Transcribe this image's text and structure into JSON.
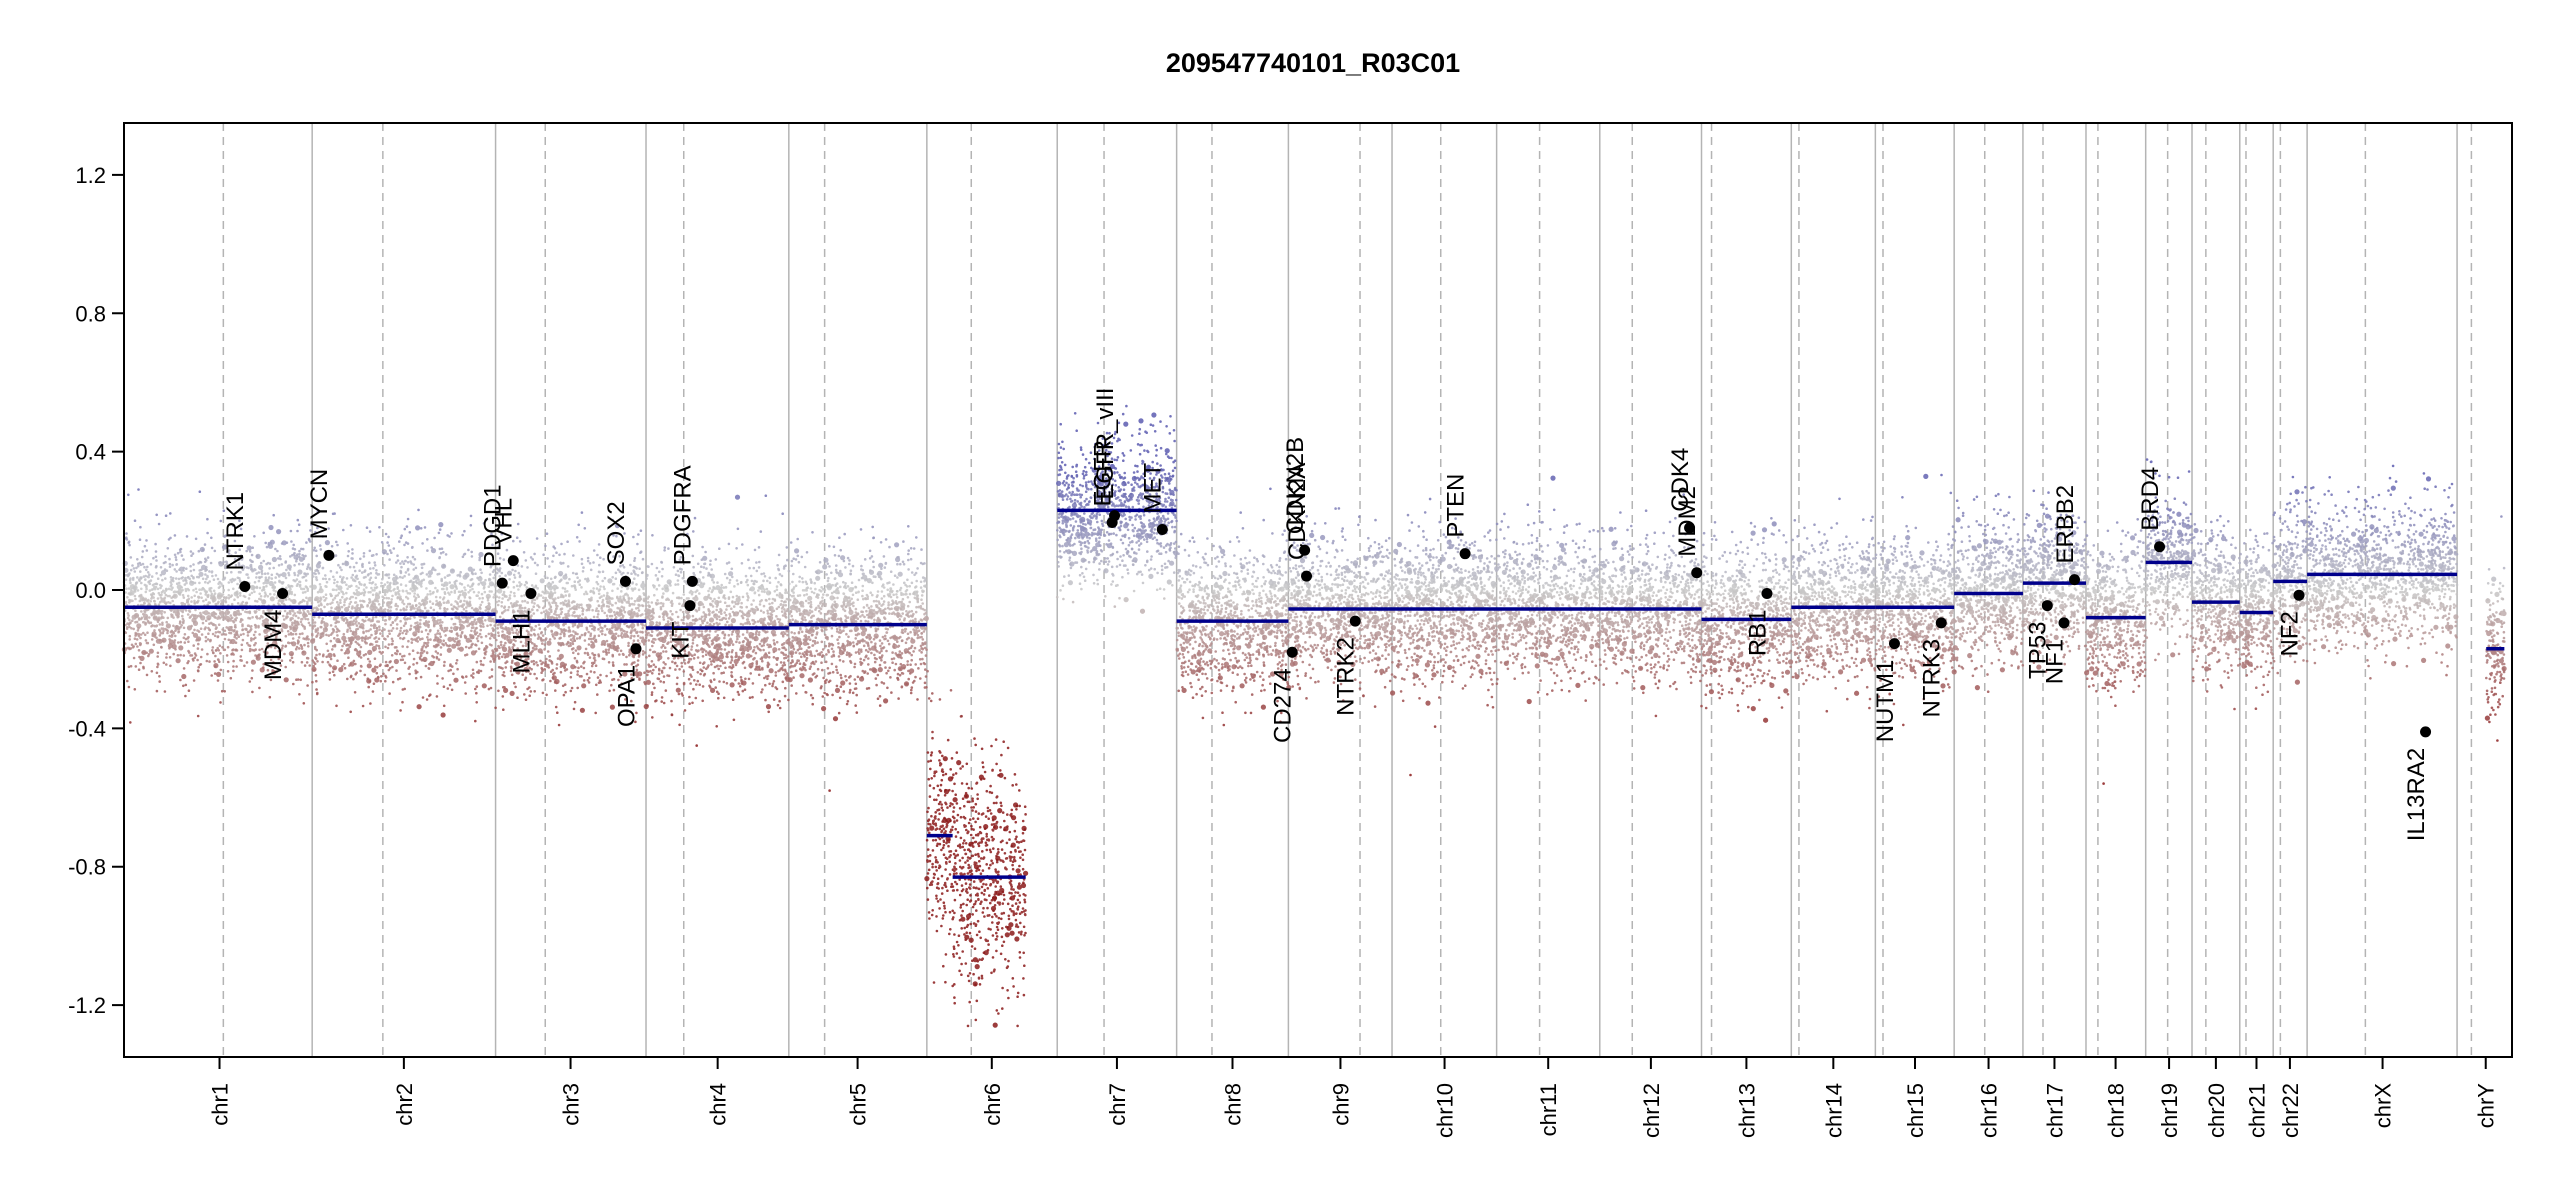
{
  "chart_data": {
    "type": "scatter",
    "title": "209547740101_R03C01",
    "xlabel": "",
    "ylabel": "",
    "ylim": [
      -1.35,
      1.35
    ],
    "y_ticks": [
      -1.2,
      -0.8,
      -0.4,
      0.0,
      0.4,
      0.8,
      1.2
    ],
    "y_tick_labels": [
      "-1.2",
      "-0.8",
      "-0.4",
      "0.0",
      "0.4",
      "0.8",
      "1.2"
    ],
    "x_unit": "relative genome position (chromosome units)",
    "grid": false,
    "colors": {
      "segment": "#00008b",
      "gain": "#5c5cb0",
      "neutral": "#c8c8c8",
      "loss": "#8b1a1a",
      "gene_point": "#000000",
      "chr_boundary": "#b4b4b4",
      "centromere": "#b4b4b4"
    },
    "chromosomes": [
      {
        "name": "chr1",
        "start": 0.0,
        "end": 3.94,
        "centromere": 2.08,
        "label_at": 2.0
      },
      {
        "name": "chr2",
        "start": 3.94,
        "end": 7.78,
        "centromere": 5.42,
        "label_at": 5.86
      },
      {
        "name": "chr3",
        "start": 7.78,
        "end": 10.93,
        "centromere": 8.82,
        "label_at": 9.35
      },
      {
        "name": "chr4",
        "start": 10.93,
        "end": 13.92,
        "centromere": 11.72,
        "label_at": 12.43
      },
      {
        "name": "chr5",
        "start": 13.92,
        "end": 16.81,
        "centromere": 14.67,
        "label_at": 15.36
      },
      {
        "name": "chr6",
        "start": 16.81,
        "end": 19.54,
        "centromere": 17.74,
        "label_at": 18.17
      },
      {
        "name": "chr7",
        "start": 19.54,
        "end": 22.04,
        "centromere": 20.52,
        "label_at": 20.79
      },
      {
        "name": "chr8",
        "start": 22.04,
        "end": 24.38,
        "centromere": 22.78,
        "label_at": 23.21
      },
      {
        "name": "chr9",
        "start": 24.38,
        "end": 26.55,
        "centromere": 25.88,
        "label_at": 25.47
      },
      {
        "name": "chr10",
        "start": 26.55,
        "end": 28.74,
        "centromere": 27.57,
        "label_at": 27.65
      },
      {
        "name": "chr11",
        "start": 28.74,
        "end": 30.9,
        "centromere": 29.64,
        "label_at": 29.82
      },
      {
        "name": "chr12",
        "start": 30.9,
        "end": 33.03,
        "centromere": 31.58,
        "label_at": 31.97
      },
      {
        "name": "chr13",
        "start": 33.03,
        "end": 34.91,
        "centromere": 33.24,
        "label_at": 33.97
      },
      {
        "name": "chr14",
        "start": 34.91,
        "end": 36.67,
        "centromere": 35.07,
        "label_at": 35.79
      },
      {
        "name": "chr15",
        "start": 36.67,
        "end": 38.32,
        "centromere": 36.83,
        "label_at": 37.5
      },
      {
        "name": "chr16",
        "start": 38.32,
        "end": 39.76,
        "centromere": 38.96,
        "label_at": 39.04
      },
      {
        "name": "chr17",
        "start": 39.76,
        "end": 41.08,
        "centromere": 40.18,
        "label_at": 40.42
      },
      {
        "name": "chr18",
        "start": 41.08,
        "end": 42.33,
        "centromere": 41.33,
        "label_at": 41.7
      },
      {
        "name": "chr19",
        "start": 42.33,
        "end": 43.3,
        "centromere": 42.79,
        "label_at": 42.82
      },
      {
        "name": "chr20",
        "start": 43.3,
        "end": 44.3,
        "centromere": 43.59,
        "label_at": 43.8
      },
      {
        "name": "chr21",
        "start": 44.3,
        "end": 45.0,
        "centromere": 44.43,
        "label_at": 44.65
      },
      {
        "name": "chr22",
        "start": 45.0,
        "end": 45.71,
        "centromere": 45.15,
        "label_at": 45.35
      },
      {
        "name": "chrX",
        "start": 45.71,
        "end": 48.85,
        "centromere": 46.93,
        "label_at": 47.29
      },
      {
        "name": "chrY",
        "start": 48.85,
        "end": 50.0,
        "centromere": 49.15,
        "label_at": 49.45
      }
    ],
    "series": [
      {
        "name": "",
        "chr": "chr1",
        "x": [
          0.0,
          3.94
        ],
        "y": -0.05
      },
      {
        "name": "",
        "chr": "chr2",
        "x": [
          3.94,
          7.78
        ],
        "y": -0.07
      },
      {
        "name": "",
        "chr": "chr3",
        "x": [
          7.78,
          10.93
        ],
        "y": -0.09
      },
      {
        "name": "",
        "chr": "chr4",
        "x": [
          10.93,
          13.92
        ],
        "y": -0.11
      },
      {
        "name": "",
        "chr": "chr5",
        "x": [
          13.92,
          16.81
        ],
        "y": -0.1
      },
      {
        "name": "",
        "chr": "chr6",
        "x": [
          16.81,
          17.35
        ],
        "y": -0.71
      },
      {
        "name": "",
        "chr": "chr6",
        "x": [
          17.35,
          18.88
        ],
        "y": -0.83
      },
      {
        "name": "",
        "chr": "chr7",
        "x": [
          19.54,
          22.04
        ],
        "y": 0.23
      },
      {
        "name": "",
        "chr": "chr8",
        "x": [
          22.04,
          24.38
        ],
        "y": -0.09
      },
      {
        "name": "",
        "chr": "chr9-chr12",
        "x": [
          24.38,
          33.03
        ],
        "y": -0.055
      },
      {
        "name": "",
        "chr": "chr13",
        "x": [
          33.03,
          34.91
        ],
        "y": -0.085
      },
      {
        "name": "",
        "chr": "chr14",
        "x": [
          34.91,
          36.67
        ],
        "y": -0.05
      },
      {
        "name": "",
        "chr": "chr15",
        "x": [
          36.67,
          38.32
        ],
        "y": -0.05
      },
      {
        "name": "",
        "chr": "chr16",
        "x": [
          38.32,
          39.76
        ],
        "y": -0.01
      },
      {
        "name": "",
        "chr": "chr17",
        "x": [
          39.76,
          41.08
        ],
        "y": 0.02
      },
      {
        "name": "",
        "chr": "chr18",
        "x": [
          41.08,
          42.33
        ],
        "y": -0.08
      },
      {
        "name": "",
        "chr": "chr19",
        "x": [
          42.33,
          43.3
        ],
        "y": 0.08
      },
      {
        "name": "",
        "chr": "chr20",
        "x": [
          43.3,
          44.3
        ],
        "y": -0.035
      },
      {
        "name": "",
        "chr": "chr21",
        "x": [
          44.3,
          45.0
        ],
        "y": -0.065
      },
      {
        "name": "",
        "chr": "chr22",
        "x": [
          45.0,
          45.71
        ],
        "y": 0.025
      },
      {
        "name": "",
        "chr": "chrX",
        "x": [
          45.71,
          48.85
        ],
        "y": 0.045
      },
      {
        "name": "",
        "chr": "chrY",
        "x": [
          49.46,
          49.84
        ],
        "y": -0.17
      }
    ],
    "genes": [
      {
        "name": "NTRK1",
        "x": 2.53,
        "y": 0.01,
        "label_side": "above"
      },
      {
        "name": "MDM4",
        "x": 3.32,
        "y": -0.01,
        "label_side": "below"
      },
      {
        "name": "MYCN",
        "x": 4.29,
        "y": 0.1,
        "label_side": "above"
      },
      {
        "name": "PDGD1",
        "x": 7.92,
        "y": 0.02,
        "label_side": "above"
      },
      {
        "name": "VHL",
        "x": 8.15,
        "y": 0.085,
        "label_side": "above"
      },
      {
        "name": "MLH1",
        "x": 8.52,
        "y": -0.01,
        "label_side": "below"
      },
      {
        "name": "SOX2",
        "x": 10.5,
        "y": 0.025,
        "label_side": "above"
      },
      {
        "name": "OPA1",
        "x": 10.72,
        "y": -0.17,
        "label_side": "below"
      },
      {
        "name": "PDGFRA",
        "x": 11.9,
        "y": 0.025,
        "label_side": "above"
      },
      {
        "name": "KIT",
        "x": 11.85,
        "y": -0.045,
        "label_side": "below"
      },
      {
        "name": "EGFR",
        "x": 20.69,
        "y": 0.195,
        "label_side": "above"
      },
      {
        "name": "EGFR_vIII",
        "x": 20.74,
        "y": 0.215,
        "label_side": "above"
      },
      {
        "name": "MET",
        "x": 21.74,
        "y": 0.175,
        "label_side": "above"
      },
      {
        "name": "CD274",
        "x": 24.46,
        "y": -0.18,
        "label_side": "below"
      },
      {
        "name": "CDKN2A",
        "x": 24.76,
        "y": 0.04,
        "label_side": "above"
      },
      {
        "name": "CDKN2B",
        "x": 24.72,
        "y": 0.115,
        "label_side": "above"
      },
      {
        "name": "NTRK2",
        "x": 25.78,
        "y": -0.09,
        "label_side": "below"
      },
      {
        "name": "PTEN",
        "x": 28.08,
        "y": 0.105,
        "label_side": "above"
      },
      {
        "name": "CDK4",
        "x": 32.78,
        "y": 0.18,
        "label_side": "above"
      },
      {
        "name": "MDM2",
        "x": 32.93,
        "y": 0.05,
        "label_side": "above"
      },
      {
        "name": "RB1",
        "x": 34.4,
        "y": -0.01,
        "label_side": "below"
      },
      {
        "name": "NUTM1",
        "x": 37.07,
        "y": -0.155,
        "label_side": "below"
      },
      {
        "name": "NTRK3",
        "x": 38.05,
        "y": -0.095,
        "label_side": "below"
      },
      {
        "name": "TP53",
        "x": 40.27,
        "y": -0.045,
        "label_side": "below"
      },
      {
        "name": "NF1",
        "x": 40.62,
        "y": -0.095,
        "label_side": "below"
      },
      {
        "name": "ERBB2",
        "x": 40.84,
        "y": 0.03,
        "label_side": "above"
      },
      {
        "name": "BRD4",
        "x": 42.62,
        "y": 0.125,
        "label_side": "above"
      },
      {
        "name": "NF2",
        "x": 45.54,
        "y": -0.015,
        "label_side": "below"
      },
      {
        "name": "IL13RA2",
        "x": 48.19,
        "y": -0.41,
        "label_side": "below"
      }
    ]
  }
}
